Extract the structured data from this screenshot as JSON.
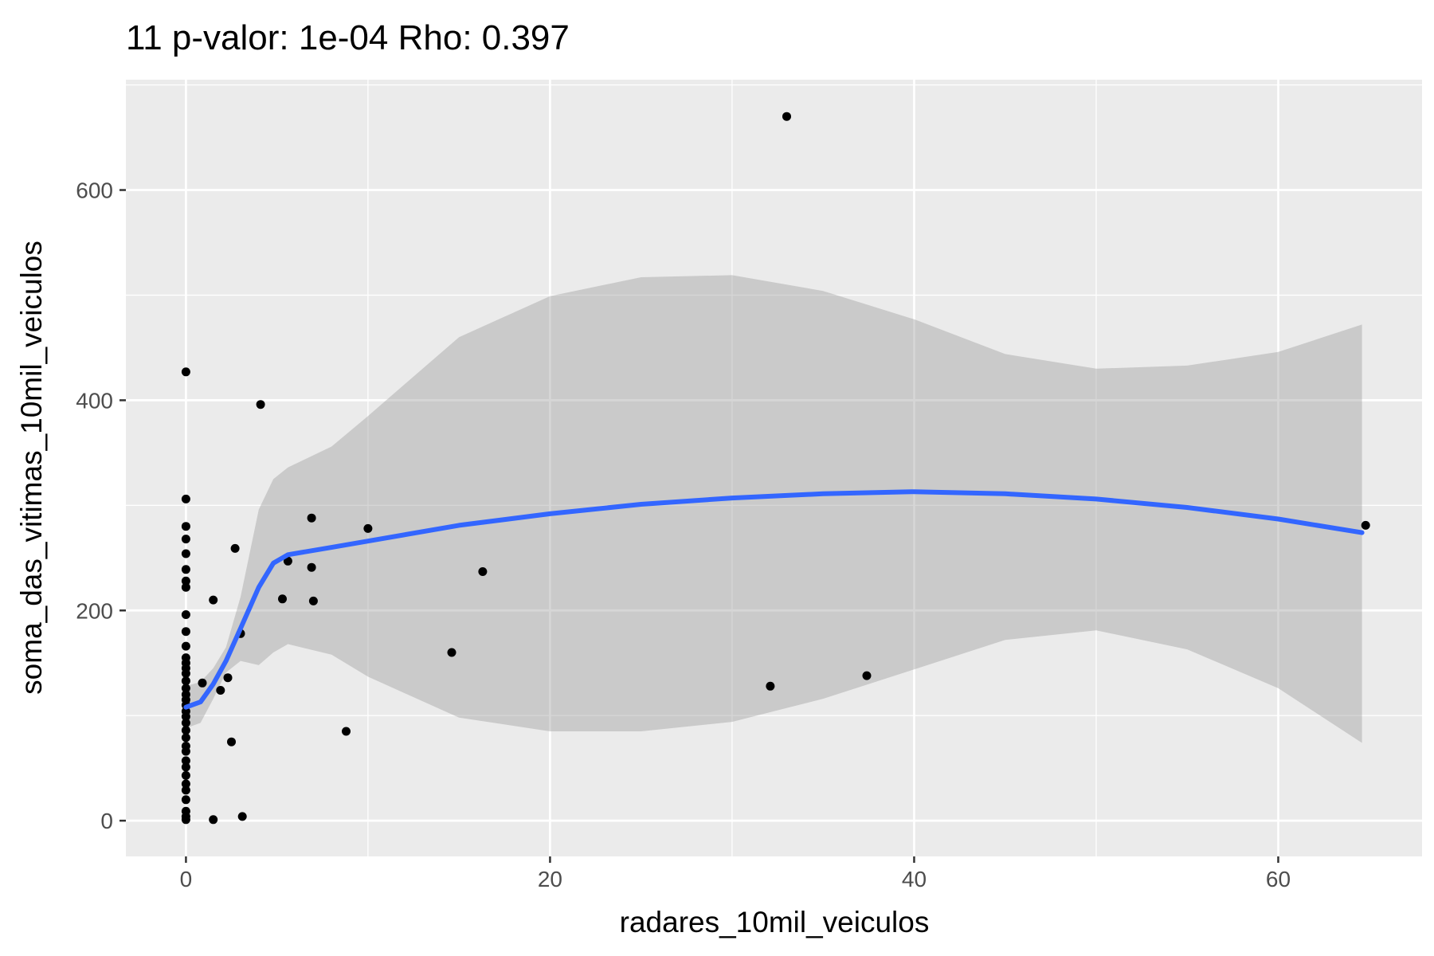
{
  "chart_data": {
    "type": "scatter",
    "title": "11 p-valor: 1e-04 Rho: 0.397",
    "xlabel": "radares_10mil_veiculos",
    "ylabel": "soma_das_vitimas_10mil_veiculos",
    "xlim": [
      -3.3,
      67.9
    ],
    "ylim": [
      -34,
      705
    ],
    "x_ticks": [
      0,
      20,
      40,
      60
    ],
    "y_ticks": [
      0,
      200,
      400,
      600
    ],
    "x_tick_labels": [
      "0",
      "20",
      "40",
      "60"
    ],
    "y_tick_labels": [
      "0",
      "200",
      "400",
      "600"
    ],
    "grid": true,
    "colors": {
      "panel": "#ebebeb",
      "grid": "#ffffff",
      "points": "#000000",
      "smooth_line": "#3366ff",
      "confidence_band": "#999999"
    },
    "points": [
      {
        "x": 0,
        "y": 427
      },
      {
        "x": 0,
        "y": 306
      },
      {
        "x": 0,
        "y": 280
      },
      {
        "x": 0,
        "y": 268
      },
      {
        "x": 0,
        "y": 254
      },
      {
        "x": 0,
        "y": 239
      },
      {
        "x": 0,
        "y": 228
      },
      {
        "x": 0,
        "y": 222
      },
      {
        "x": 0,
        "y": 196
      },
      {
        "x": 0,
        "y": 180
      },
      {
        "x": 0,
        "y": 166
      },
      {
        "x": 0,
        "y": 155
      },
      {
        "x": 0,
        "y": 150
      },
      {
        "x": 0,
        "y": 145
      },
      {
        "x": 0,
        "y": 140
      },
      {
        "x": 0,
        "y": 133
      },
      {
        "x": 0,
        "y": 126
      },
      {
        "x": 0,
        "y": 120
      },
      {
        "x": 0,
        "y": 115
      },
      {
        "x": 0,
        "y": 110
      },
      {
        "x": 0,
        "y": 104
      },
      {
        "x": 0,
        "y": 99
      },
      {
        "x": 0,
        "y": 93
      },
      {
        "x": 0,
        "y": 86
      },
      {
        "x": 0,
        "y": 79
      },
      {
        "x": 0,
        "y": 71
      },
      {
        "x": 0,
        "y": 66
      },
      {
        "x": 0,
        "y": 57
      },
      {
        "x": 0,
        "y": 51
      },
      {
        "x": 0,
        "y": 43
      },
      {
        "x": 0,
        "y": 35
      },
      {
        "x": 0,
        "y": 29
      },
      {
        "x": 0,
        "y": 20
      },
      {
        "x": 0,
        "y": 9
      },
      {
        "x": 0,
        "y": 4
      },
      {
        "x": 0,
        "y": 1
      },
      {
        "x": 0.9,
        "y": 131
      },
      {
        "x": 1.5,
        "y": 210
      },
      {
        "x": 1.5,
        "y": 1
      },
      {
        "x": 1.9,
        "y": 124
      },
      {
        "x": 2.3,
        "y": 136
      },
      {
        "x": 2.5,
        "y": 75
      },
      {
        "x": 2.7,
        "y": 259
      },
      {
        "x": 3.0,
        "y": 178
      },
      {
        "x": 3.1,
        "y": 4
      },
      {
        "x": 4.1,
        "y": 396
      },
      {
        "x": 5.3,
        "y": 211
      },
      {
        "x": 5.6,
        "y": 247
      },
      {
        "x": 6.9,
        "y": 288
      },
      {
        "x": 6.9,
        "y": 241
      },
      {
        "x": 7.0,
        "y": 209
      },
      {
        "x": 8.8,
        "y": 85
      },
      {
        "x": 10.0,
        "y": 278
      },
      {
        "x": 14.6,
        "y": 160
      },
      {
        "x": 16.3,
        "y": 237
      },
      {
        "x": 32.1,
        "y": 128
      },
      {
        "x": 33.0,
        "y": 670
      },
      {
        "x": 37.4,
        "y": 138
      },
      {
        "x": 64.8,
        "y": 281
      }
    ],
    "smooth_line": {
      "x": [
        0,
        0.8,
        1.5,
        2.2,
        3.0,
        4.0,
        4.8,
        5.6,
        8,
        10,
        15,
        20,
        25,
        30,
        35,
        40,
        45,
        50,
        55,
        60,
        64.6
      ],
      "y": [
        108,
        113,
        130,
        152,
        183,
        222,
        245,
        253,
        260,
        266,
        281,
        292,
        301,
        307,
        311,
        313,
        311,
        306,
        298,
        287,
        274
      ]
    },
    "confidence_band": {
      "x": [
        0,
        0.8,
        1.5,
        2.2,
        3.0,
        4.0,
        4.8,
        5.6,
        8,
        10,
        15,
        20,
        25,
        30,
        35,
        40,
        45,
        50,
        55,
        60,
        64.6
      ],
      "upper": [
        128,
        132,
        145,
        165,
        213,
        296,
        325,
        336,
        356,
        385,
        460,
        499,
        517,
        519,
        504,
        477,
        444,
        430,
        433,
        446,
        472
      ],
      "lower": [
        88,
        93,
        116,
        141,
        152,
        148,
        160,
        168,
        158,
        137,
        98,
        85,
        85,
        94,
        116,
        144,
        172,
        181,
        163,
        126,
        74
      ]
    }
  }
}
